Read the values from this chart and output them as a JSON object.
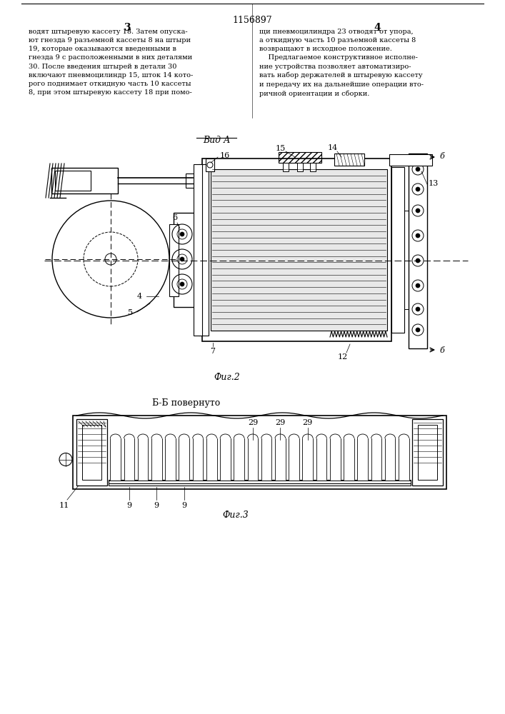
{
  "title": "1156897",
  "col3": "3",
  "col4": "4",
  "text_left": "водят штыревую кассету 18. Затем опуска-\nют гнезда 9 разъемной кассеты 8 на штыри\n19, которые оказываются введенными в\nгнезда 9 с расположенными в них деталями\n30. После введения штырей в детали 30\nвключают пневмоцилиндр 15, шток 14 кото-\nрого поднимает откидную часть 10 кассеты\n8, при этом штыревую кассету 18 при помо-",
  "text_right": "щи пневмоцилиндра 23 отводят от упора,\nа откидную часть 10 разъемной кассеты 8\nвозвращают в исходное положение.\n    Предлагаемое конструктивное исполне-\nние устройства позволяет автоматизиро-\nвать набор держателей в штыревую кассету\nи передачу их на дальнейшие операции вто-\nричной ориентации и сборки.",
  "vid_a_label": "Вид А",
  "fig2_label": "Фиг.2",
  "fig3_label": "Фиг.3",
  "bb_label": "Б-Б повернуто",
  "bg_color": "#ffffff",
  "line_color": "#000000",
  "text_color": "#000000"
}
